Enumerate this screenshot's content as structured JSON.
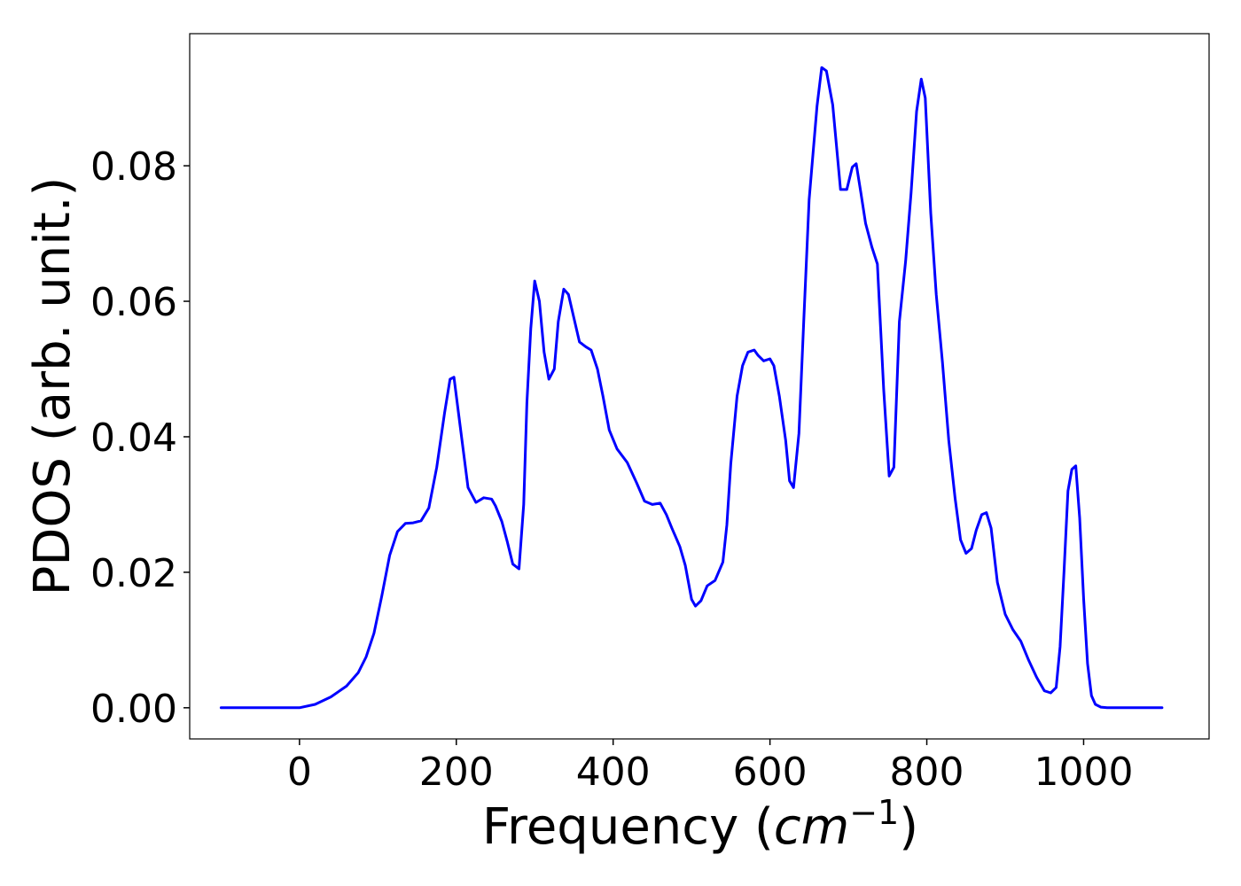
{
  "chart_data": {
    "type": "line",
    "title": "",
    "xlabel": "Frequency (cm^-1)",
    "xlabel_parts": {
      "prefix": "Frequency (",
      "unit": "cm",
      "exponent": "−1",
      "suffix": ")"
    },
    "ylabel": "PDOS (arb. unit.)",
    "xlim": [
      -140,
      1160
    ],
    "ylim": [
      -0.0046,
      0.0995
    ],
    "xticks": [
      0,
      200,
      400,
      600,
      800,
      1000
    ],
    "xtick_labels": [
      "0",
      "200",
      "400",
      "600",
      "800",
      "1000"
    ],
    "yticks": [
      0.0,
      0.02,
      0.04,
      0.06,
      0.08
    ],
    "ytick_labels": [
      "0.00",
      "0.02",
      "0.04",
      "0.06",
      "0.08"
    ],
    "grid": false,
    "series": [
      {
        "color": "#0000ff",
        "x": [
          -100,
          0,
          20,
          40,
          60,
          75,
          85,
          95,
          105,
          115,
          125,
          135,
          145,
          155,
          165,
          175,
          185,
          192,
          197,
          205,
          215,
          225,
          235,
          245,
          250,
          258,
          265,
          272,
          280,
          286,
          290,
          295,
          300,
          306,
          312,
          318,
          325,
          330,
          337,
          343,
          350,
          357,
          365,
          372,
          380,
          387,
          395,
          405,
          418,
          430,
          440,
          450,
          460,
          468,
          475,
          485,
          492,
          500,
          505,
          512,
          520,
          530,
          540,
          545,
          550,
          558,
          565,
          572,
          580,
          585,
          592,
          600,
          605,
          612,
          620,
          625,
          630,
          637,
          643,
          650,
          660,
          666,
          672,
          680,
          690,
          698,
          705,
          710,
          716,
          722,
          730,
          737,
          745,
          752,
          758,
          765,
          773,
          780,
          787,
          793,
          798,
          805,
          812,
          820,
          828,
          836,
          843,
          850,
          857,
          863,
          870,
          876,
          882,
          890,
          900,
          910,
          920,
          930,
          940,
          950,
          958,
          965,
          970,
          975,
          980,
          985,
          990,
          995,
          1000,
          1005,
          1010,
          1015,
          1022,
          1030,
          1040,
          1060,
          1100
        ],
        "y": [
          0.0,
          0.0,
          0.0005,
          0.0016,
          0.0032,
          0.0052,
          0.0075,
          0.011,
          0.0165,
          0.0225,
          0.026,
          0.0272,
          0.0273,
          0.0276,
          0.0295,
          0.0355,
          0.0435,
          0.0485,
          0.0488,
          0.0415,
          0.0325,
          0.0303,
          0.031,
          0.0308,
          0.0298,
          0.0275,
          0.0245,
          0.0212,
          0.0205,
          0.03,
          0.045,
          0.056,
          0.063,
          0.06,
          0.0525,
          0.0485,
          0.05,
          0.057,
          0.0618,
          0.061,
          0.0575,
          0.054,
          0.0533,
          0.0528,
          0.05,
          0.046,
          0.041,
          0.0382,
          0.0362,
          0.0332,
          0.0305,
          0.03,
          0.0302,
          0.0285,
          0.0265,
          0.0238,
          0.021,
          0.016,
          0.015,
          0.0158,
          0.018,
          0.0188,
          0.0215,
          0.027,
          0.036,
          0.046,
          0.0505,
          0.0525,
          0.0528,
          0.052,
          0.0512,
          0.0515,
          0.0505,
          0.046,
          0.0395,
          0.0335,
          0.0325,
          0.0405,
          0.057,
          0.075,
          0.0888,
          0.0945,
          0.094,
          0.089,
          0.0765,
          0.0765,
          0.0798,
          0.0803,
          0.076,
          0.0715,
          0.068,
          0.0655,
          0.047,
          0.0342,
          0.0355,
          0.057,
          0.066,
          0.076,
          0.088,
          0.0928,
          0.09,
          0.073,
          0.061,
          0.051,
          0.0395,
          0.031,
          0.0248,
          0.0228,
          0.0235,
          0.0262,
          0.0285,
          0.0288,
          0.0265,
          0.0185,
          0.0138,
          0.0115,
          0.0098,
          0.007,
          0.0045,
          0.0025,
          0.0022,
          0.003,
          0.009,
          0.02,
          0.032,
          0.0352,
          0.0357,
          0.028,
          0.016,
          0.0065,
          0.0018,
          0.0005,
          0.0001,
          0.0,
          0.0,
          0.0,
          0.0
        ]
      }
    ]
  }
}
